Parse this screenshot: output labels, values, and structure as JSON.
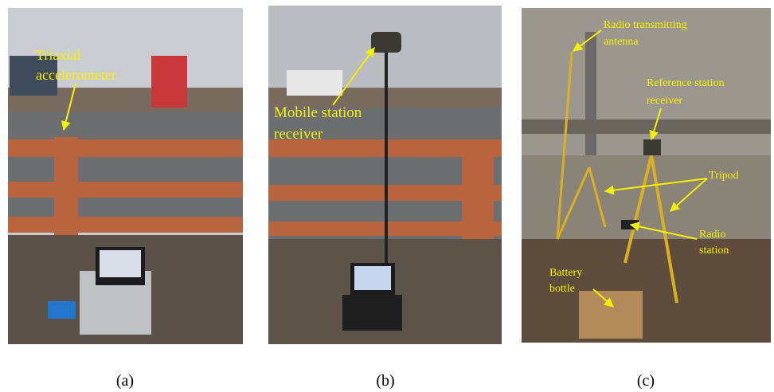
{
  "panels": [
    {
      "caption": "(a)",
      "annotations": [
        {
          "lines": [
            "Triaxial",
            "accelerometer"
          ]
        }
      ]
    },
    {
      "caption": "(b)",
      "annotations": [
        {
          "lines": [
            "Mobile station",
            "receiver"
          ]
        }
      ]
    },
    {
      "caption": "(c)",
      "annotations": [
        {
          "lines": [
            "Radio  transmitting",
            "antenna"
          ]
        },
        {
          "lines": [
            "Reference station",
            "receiver"
          ]
        },
        {
          "lines": [
            "Tripod"
          ]
        },
        {
          "lines": [
            "Radio",
            "station"
          ]
        },
        {
          "lines": [
            "Battery",
            "bottle"
          ]
        }
      ]
    }
  ]
}
